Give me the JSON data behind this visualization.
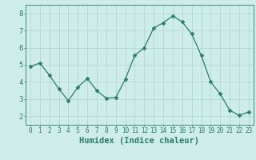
{
  "x": [
    0,
    1,
    2,
    3,
    4,
    5,
    6,
    7,
    8,
    9,
    10,
    11,
    12,
    13,
    14,
    15,
    16,
    17,
    18,
    19,
    20,
    21,
    22,
    23
  ],
  "y": [
    4.9,
    5.1,
    4.4,
    3.6,
    2.9,
    3.7,
    4.2,
    3.5,
    3.05,
    3.1,
    4.15,
    5.55,
    6.0,
    7.15,
    7.45,
    7.85,
    7.5,
    6.8,
    5.55,
    4.0,
    3.3,
    2.35,
    2.05,
    2.25
  ],
  "line_color": "#2a7d6b",
  "marker": "D",
  "marker_size": 2.5,
  "background_color": "#ceecea",
  "grid_color": "#aed4d0",
  "xlabel": "Humidex (Indice chaleur)",
  "xlim": [
    -0.5,
    23.5
  ],
  "ylim": [
    1.5,
    8.5
  ],
  "yticks": [
    2,
    3,
    4,
    5,
    6,
    7,
    8
  ],
  "xticks": [
    0,
    1,
    2,
    3,
    4,
    5,
    6,
    7,
    8,
    9,
    10,
    11,
    12,
    13,
    14,
    15,
    16,
    17,
    18,
    19,
    20,
    21,
    22,
    23
  ],
  "tick_color": "#2a7d6b",
  "label_color": "#2a7d6b",
  "spine_color": "#2a7d6b",
  "xlabel_fontsize": 7.5,
  "ytick_fontsize": 6.5,
  "xtick_fontsize": 5.5
}
